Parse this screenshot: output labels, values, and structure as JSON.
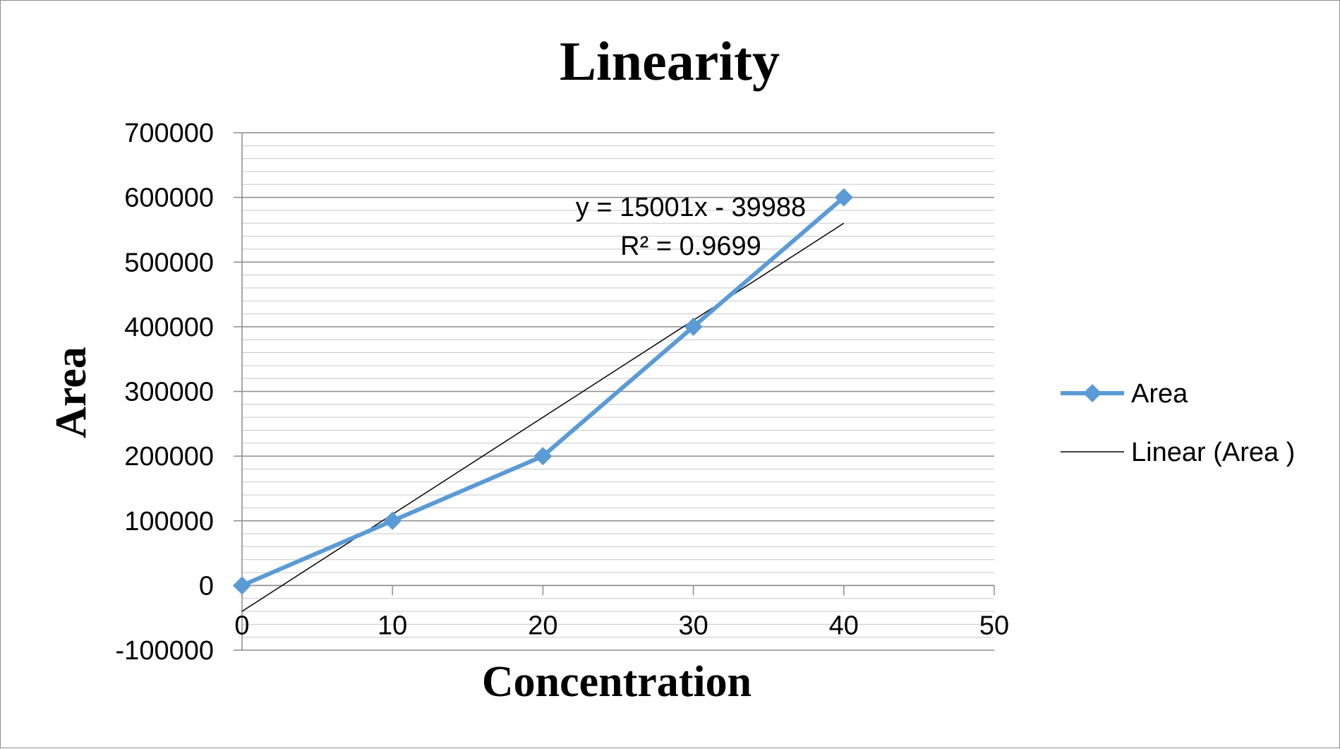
{
  "chart_data": {
    "type": "line",
    "title": "Linearity",
    "xlabel": "Concentration",
    "ylabel": "Area",
    "xlim": [
      0,
      50
    ],
    "ylim": [
      -100000,
      700000
    ],
    "x_ticks": [
      0,
      10,
      20,
      30,
      40,
      50
    ],
    "y_ticks": [
      -100000,
      0,
      100000,
      200000,
      300000,
      400000,
      500000,
      600000,
      700000
    ],
    "y_minor_step": 20000,
    "grid": true,
    "legend_position": "right",
    "series": [
      {
        "name": "Area",
        "color": "#5b9bd5",
        "marker": "diamond",
        "x": [
          0,
          10,
          20,
          30,
          40
        ],
        "y": [
          0,
          100000,
          200000,
          400000,
          600000
        ]
      }
    ],
    "trendline": {
      "name": "Linear (Area )",
      "color": "#000000",
      "slope": 15001,
      "intercept": -39988,
      "x_range": [
        0,
        40
      ],
      "equation": "y = 15001x - 39988",
      "r_squared": "R² = 0.9699"
    }
  }
}
